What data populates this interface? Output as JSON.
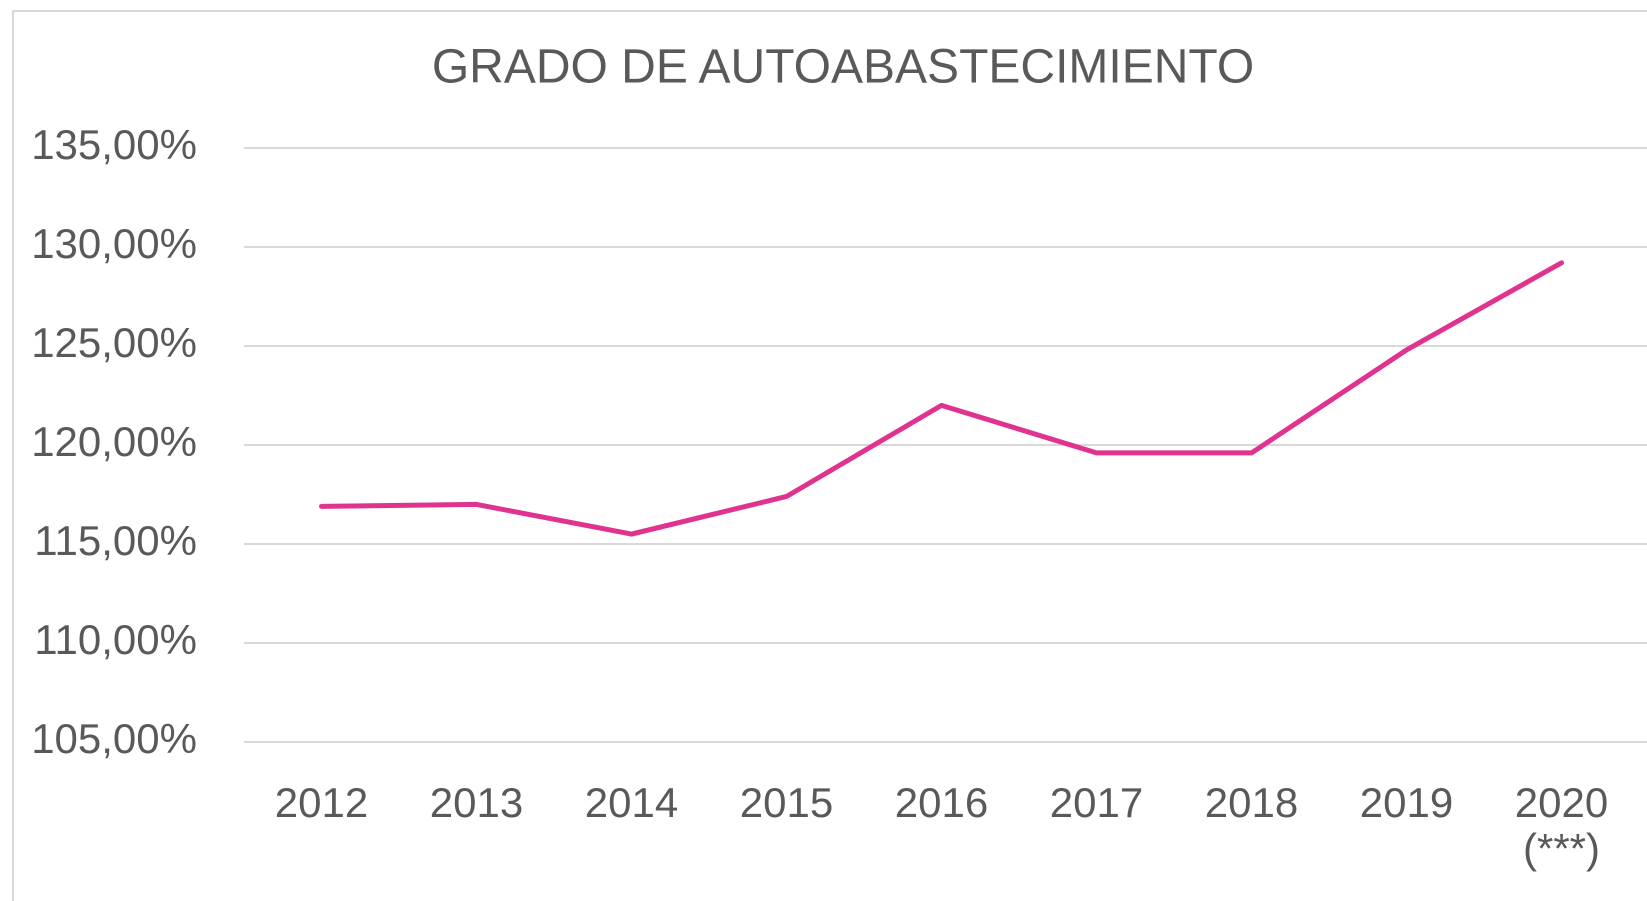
{
  "chart_data": {
    "type": "line",
    "title": "GRADO DE AUTOABASTECIMIENTO",
    "categories": [
      "2012",
      "2013",
      "2014",
      "2015",
      "2016",
      "2017",
      "2018",
      "2019",
      "2020 (***)"
    ],
    "series": [
      {
        "color": "#e0338f",
        "values": [
          116.9,
          117.0,
          115.5,
          117.4,
          122.0,
          119.6,
          119.6,
          124.8,
          129.2
        ]
      }
    ],
    "ylim": [
      105,
      135
    ],
    "yticks": [
      {
        "value": 105,
        "label": "105,00%"
      },
      {
        "value": 110,
        "label": "110,00%"
      },
      {
        "value": 115,
        "label": "115,00%"
      },
      {
        "value": 120,
        "label": "120,00%"
      },
      {
        "value": 125,
        "label": "125,00%"
      },
      {
        "value": 130,
        "label": "130,00%"
      },
      {
        "value": 135,
        "label": "135,00%"
      }
    ],
    "grid": true
  }
}
